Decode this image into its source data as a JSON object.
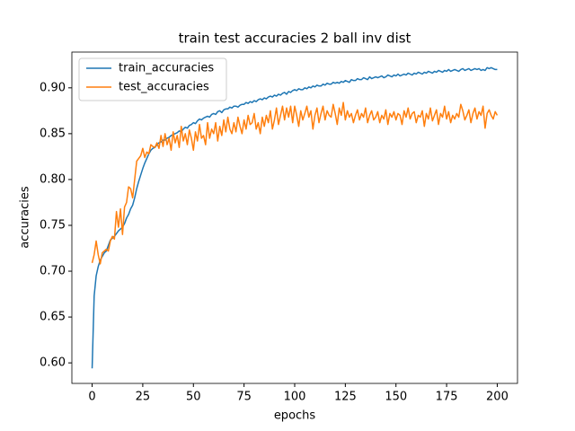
{
  "chart_data": {
    "type": "line",
    "title": "train test accuracies 2 ball inv dist",
    "xlabel": "epochs",
    "ylabel": "accuracies",
    "x": [
      0,
      1,
      2,
      3,
      4,
      5,
      6,
      7,
      8,
      9,
      10,
      11,
      12,
      13,
      14,
      15,
      16,
      17,
      18,
      19,
      20,
      21,
      22,
      23,
      24,
      25,
      26,
      27,
      28,
      29,
      30,
      31,
      32,
      33,
      34,
      35,
      36,
      37,
      38,
      39,
      40,
      41,
      42,
      43,
      44,
      45,
      46,
      47,
      48,
      49,
      50,
      51,
      52,
      53,
      54,
      55,
      56,
      57,
      58,
      59,
      60,
      61,
      62,
      63,
      64,
      65,
      66,
      67,
      68,
      69,
      70,
      71,
      72,
      73,
      74,
      75,
      76,
      77,
      78,
      79,
      80,
      81,
      82,
      83,
      84,
      85,
      86,
      87,
      88,
      89,
      90,
      91,
      92,
      93,
      94,
      95,
      96,
      97,
      98,
      99,
      100,
      101,
      102,
      103,
      104,
      105,
      106,
      107,
      108,
      109,
      110,
      111,
      112,
      113,
      114,
      115,
      116,
      117,
      118,
      119,
      120,
      121,
      122,
      123,
      124,
      125,
      126,
      127,
      128,
      129,
      130,
      131,
      132,
      133,
      134,
      135,
      136,
      137,
      138,
      139,
      140,
      141,
      142,
      143,
      144,
      145,
      146,
      147,
      148,
      149,
      150,
      151,
      152,
      153,
      154,
      155,
      156,
      157,
      158,
      159,
      160,
      161,
      162,
      163,
      164,
      165,
      166,
      167,
      168,
      169,
      170,
      171,
      172,
      173,
      174,
      175,
      176,
      177,
      178,
      179,
      180,
      181,
      182,
      183,
      184,
      185,
      186,
      187,
      188,
      189,
      190,
      191,
      192,
      193,
      194,
      195,
      196,
      197,
      198,
      199,
      200
    ],
    "series": [
      {
        "name": "train_accuracies",
        "color": "#1f77b4",
        "values": [
          0.594,
          0.673,
          0.695,
          0.705,
          0.712,
          0.716,
          0.72,
          0.722,
          0.728,
          0.734,
          0.736,
          0.738,
          0.741,
          0.744,
          0.746,
          0.748,
          0.752,
          0.758,
          0.762,
          0.768,
          0.772,
          0.78,
          0.79,
          0.798,
          0.805,
          0.812,
          0.818,
          0.823,
          0.828,
          0.832,
          0.834,
          0.835,
          0.838,
          0.84,
          0.841,
          0.843,
          0.843,
          0.845,
          0.846,
          0.848,
          0.849,
          0.85,
          0.851,
          0.853,
          0.852,
          0.855,
          0.857,
          0.856,
          0.859,
          0.86,
          0.862,
          0.861,
          0.864,
          0.866,
          0.865,
          0.867,
          0.868,
          0.869,
          0.868,
          0.871,
          0.872,
          0.871,
          0.874,
          0.875,
          0.873,
          0.876,
          0.877,
          0.877,
          0.879,
          0.878,
          0.88,
          0.88,
          0.879,
          0.881,
          0.882,
          0.882,
          0.884,
          0.883,
          0.885,
          0.884,
          0.886,
          0.885,
          0.887,
          0.888,
          0.887,
          0.889,
          0.888,
          0.89,
          0.891,
          0.89,
          0.892,
          0.891,
          0.893,
          0.892,
          0.894,
          0.895,
          0.893,
          0.896,
          0.895,
          0.897,
          0.898,
          0.897,
          0.899,
          0.898,
          0.898,
          0.9,
          0.899,
          0.901,
          0.9,
          0.902,
          0.901,
          0.903,
          0.902,
          0.902,
          0.904,
          0.903,
          0.905,
          0.904,
          0.904,
          0.906,
          0.905,
          0.906,
          0.905,
          0.907,
          0.906,
          0.908,
          0.907,
          0.906,
          0.909,
          0.908,
          0.908,
          0.91,
          0.909,
          0.909,
          0.911,
          0.91,
          0.909,
          0.912,
          0.91,
          0.911,
          0.912,
          0.911,
          0.912,
          0.913,
          0.911,
          0.912,
          0.914,
          0.913,
          0.912,
          0.914,
          0.913,
          0.915,
          0.913,
          0.914,
          0.915,
          0.914,
          0.916,
          0.915,
          0.914,
          0.916,
          0.915,
          0.917,
          0.916,
          0.915,
          0.917,
          0.916,
          0.918,
          0.917,
          0.916,
          0.918,
          0.917,
          0.919,
          0.918,
          0.917,
          0.919,
          0.918,
          0.92,
          0.918,
          0.919,
          0.92,
          0.919,
          0.918,
          0.92,
          0.921,
          0.919,
          0.92,
          0.921,
          0.919,
          0.92,
          0.921,
          0.92,
          0.921,
          0.919,
          0.92,
          0.919,
          0.922,
          0.921,
          0.922,
          0.921,
          0.92,
          0.92
        ]
      },
      {
        "name": "test_accuracies",
        "color": "#ff7f0e",
        "values": [
          0.709,
          0.718,
          0.733,
          0.718,
          0.708,
          0.72,
          0.722,
          0.724,
          0.722,
          0.733,
          0.738,
          0.735,
          0.765,
          0.748,
          0.768,
          0.74,
          0.77,
          0.775,
          0.792,
          0.79,
          0.78,
          0.8,
          0.82,
          0.823,
          0.826,
          0.834,
          0.824,
          0.83,
          0.828,
          0.838,
          0.836,
          0.835,
          0.84,
          0.834,
          0.848,
          0.836,
          0.85,
          0.838,
          0.845,
          0.832,
          0.852,
          0.84,
          0.848,
          0.835,
          0.858,
          0.842,
          0.85,
          0.838,
          0.854,
          0.845,
          0.832,
          0.852,
          0.842,
          0.86,
          0.845,
          0.848,
          0.838,
          0.862,
          0.845,
          0.855,
          0.85,
          0.862,
          0.842,
          0.858,
          0.848,
          0.865,
          0.852,
          0.868,
          0.855,
          0.85,
          0.862,
          0.852,
          0.868,
          0.858,
          0.85,
          0.865,
          0.855,
          0.87,
          0.86,
          0.862,
          0.872,
          0.855,
          0.862,
          0.85,
          0.868,
          0.858,
          0.87,
          0.862,
          0.875,
          0.855,
          0.865,
          0.878,
          0.86,
          0.87,
          0.88,
          0.865,
          0.878,
          0.868,
          0.88,
          0.862,
          0.88,
          0.87,
          0.858,
          0.875,
          0.865,
          0.872,
          0.88,
          0.868,
          0.875,
          0.855,
          0.87,
          0.878,
          0.862,
          0.872,
          0.88,
          0.865,
          0.875,
          0.87,
          0.868,
          0.882,
          0.872,
          0.86,
          0.878,
          0.87,
          0.884,
          0.865,
          0.875,
          0.868,
          0.872,
          0.862,
          0.87,
          0.876,
          0.865,
          0.872,
          0.868,
          0.878,
          0.862,
          0.87,
          0.875,
          0.865,
          0.868,
          0.874,
          0.862,
          0.87,
          0.866,
          0.876,
          0.86,
          0.872,
          0.868,
          0.874,
          0.865,
          0.872,
          0.87,
          0.86,
          0.875,
          0.868,
          0.878,
          0.866,
          0.872,
          0.874,
          0.862,
          0.87,
          0.868,
          0.875,
          0.858,
          0.872,
          0.866,
          0.878,
          0.864,
          0.87,
          0.876,
          0.86,
          0.872,
          0.868,
          0.88,
          0.866,
          0.874,
          0.862,
          0.87,
          0.866,
          0.872,
          0.868,
          0.882,
          0.875,
          0.865,
          0.87,
          0.876,
          0.862,
          0.872,
          0.878,
          0.866,
          0.874,
          0.87,
          0.88,
          0.856,
          0.872,
          0.876,
          0.87,
          0.866,
          0.874,
          0.87
        ]
      }
    ],
    "xlim": [
      -10,
      210
    ],
    "xticks": [
      0,
      25,
      50,
      75,
      100,
      125,
      150,
      175,
      200
    ],
    "ylim": [
      0.5776,
      0.939
    ],
    "yticks": [
      {
        "value": 0.6,
        "label": "0.60"
      },
      0.65,
      {
        "value": 0.7,
        "label": "0.70"
      },
      0.75,
      {
        "value": 0.8,
        "label": "0.80"
      },
      0.85,
      {
        "value": 0.9,
        "label": "0.90"
      }
    ],
    "legend": "upper left"
  }
}
